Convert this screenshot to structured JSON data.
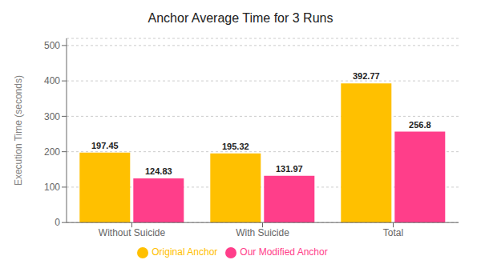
{
  "chart_data": {
    "type": "bar",
    "title": "Anchor Average Time for 3 Runs",
    "categories": [
      "Without Suicide",
      "With Suicide",
      "Total"
    ],
    "series": [
      {
        "name": "Original Anchor",
        "color": "#FFC000",
        "values": [
          197.45,
          195.32,
          392.77
        ]
      },
      {
        "name": "Our Modified Anchor",
        "color": "#FF3E8A",
        "values": [
          124.83,
          131.97,
          256.8
        ]
      }
    ],
    "ylabel": "Execution Time (seconds)",
    "ylim": [
      0,
      520
    ],
    "yticks": [
      0,
      100,
      200,
      300,
      400,
      500
    ],
    "grid": true,
    "legend": "bottom",
    "data_labels": true
  }
}
